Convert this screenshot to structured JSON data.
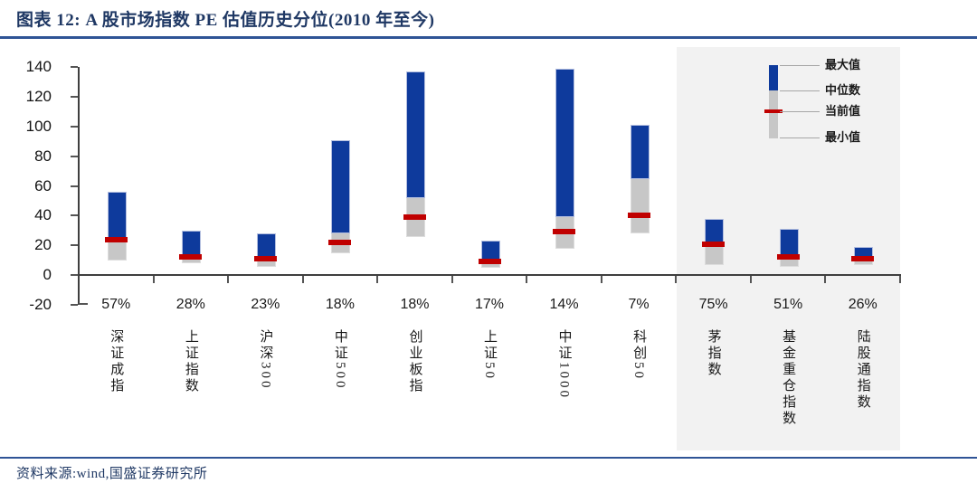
{
  "header": {
    "title": "图表 12: A 股市场指数 PE 估值历史分位(2010 年至今)"
  },
  "footer": {
    "source": "资料来源:wind,国盛证券研究所"
  },
  "legend": {
    "items": [
      {
        "key": "max",
        "label": "最大值"
      },
      {
        "key": "median",
        "label": "中位数"
      },
      {
        "key": "current",
        "label": "当前值"
      },
      {
        "key": "min",
        "label": "最小值"
      }
    ]
  },
  "colors": {
    "bar_blue": "#0e3a9c",
    "bar_gray": "#c7c7c7",
    "current_red": "#c00000",
    "navy_text": "#1f3864",
    "rule_blue": "#2f5496",
    "highlight_bg": "#f2f2f2",
    "axis": "#3f3f3f"
  },
  "chart_data": {
    "type": "bar",
    "subtype": "floating-range-bars",
    "title": "A 股市场指数 PE 估值历史分位(2010 年至今)",
    "xlabel": "",
    "ylabel": "",
    "ylim": [
      -20,
      140
    ],
    "ytick_step": 20,
    "yticks": [
      140,
      120,
      100,
      80,
      60,
      40,
      20,
      0,
      -20
    ],
    "grid": false,
    "legend_position": "top-right",
    "categories": [
      "深证成指",
      "上证指数",
      "沪深300",
      "中证500",
      "创业板指",
      "上证50",
      "中证1000",
      "科创50",
      "茅指数",
      "基金重仓指数",
      "陆股通指数"
    ],
    "percentile_labels": [
      "57%",
      "28%",
      "23%",
      "18%",
      "18%",
      "17%",
      "14%",
      "7%",
      "75%",
      "51%",
      "26%"
    ],
    "highlighted_categories": [
      "茅指数",
      "基金重仓指数",
      "陆股通指数"
    ],
    "series": [
      {
        "name": "最小值",
        "values": [
          11,
          9,
          7,
          16,
          27,
          6,
          19,
          29,
          8,
          7,
          8
        ]
      },
      {
        "name": "中位数",
        "values": [
          26,
          14,
          12,
          29,
          53,
          11,
          40,
          66,
          20,
          13,
          12
        ]
      },
      {
        "name": "当前值",
        "values": [
          24,
          12,
          11,
          22,
          39,
          9,
          29,
          40,
          21,
          12,
          11
        ]
      },
      {
        "name": "最大值",
        "values": [
          56,
          30,
          28,
          91,
          137,
          23,
          139,
          101,
          38,
          31,
          19
        ]
      }
    ]
  }
}
